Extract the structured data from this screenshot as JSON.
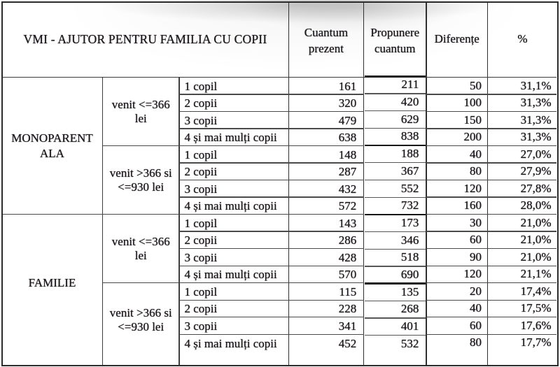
{
  "title": "VMI - AJUTOR PENTRU FAMILIA CU COPII",
  "columns": {
    "cuantum_prezent": "Cuantum prezent",
    "propunere_cuantum": "Propunere cuantum",
    "diferente": "Diferențe",
    "procent": "%"
  },
  "groups": [
    {
      "label": "MONOPARENTALA",
      "income_bands": [
        {
          "label": "venit <=366 lei",
          "rows": [
            {
              "label": "1 copil",
              "cuantum_prezent": "161",
              "propunere_cuantum": "211",
              "diferenta": "50",
              "procent": "31,1%"
            },
            {
              "label": "2 copii",
              "cuantum_prezent": "320",
              "propunere_cuantum": "420",
              "diferenta": "100",
              "procent": "31,3%"
            },
            {
              "label": "3 copii",
              "cuantum_prezent": "479",
              "propunere_cuantum": "629",
              "diferenta": "150",
              "procent": "31,3%"
            },
            {
              "label": "4 și mai mulți copii",
              "cuantum_prezent": "638",
              "propunere_cuantum": "838",
              "diferenta": "200",
              "procent": "31,3%"
            }
          ]
        },
        {
          "label": "venit >366 si <=930 lei",
          "rows": [
            {
              "label": "1 copil",
              "cuantum_prezent": "148",
              "propunere_cuantum": "188",
              "diferenta": "40",
              "procent": "27,0%"
            },
            {
              "label": "2 copii",
              "cuantum_prezent": "287",
              "propunere_cuantum": "367",
              "diferenta": "80",
              "procent": "27,9%"
            },
            {
              "label": "3 copii",
              "cuantum_prezent": "432",
              "propunere_cuantum": "552",
              "diferenta": "120",
              "procent": "27,8%"
            },
            {
              "label": "4 și mai mulți copii",
              "cuantum_prezent": "572",
              "propunere_cuantum": "732",
              "diferenta": "160",
              "procent": "28,0%"
            }
          ]
        }
      ]
    },
    {
      "label": "FAMILIE",
      "income_bands": [
        {
          "label": "venit <=366 lei",
          "rows": [
            {
              "label": "1 copil",
              "cuantum_prezent": "143",
              "propunere_cuantum": "173",
              "diferenta": "30",
              "procent": "21,0%"
            },
            {
              "label": "2 copii",
              "cuantum_prezent": "286",
              "propunere_cuantum": "346",
              "diferenta": "60",
              "procent": "21,0%"
            },
            {
              "label": "3 copii",
              "cuantum_prezent": "428",
              "propunere_cuantum": "518",
              "diferenta": "90",
              "procent": "21,0%"
            },
            {
              "label": "4 și mai mulți copii",
              "cuantum_prezent": "570",
              "propunere_cuantum": "690",
              "diferenta": "120",
              "procent": "21,1%"
            }
          ]
        },
        {
          "label": "venit >366 si <=930 lei",
          "rows": [
            {
              "label": "1 copil",
              "cuantum_prezent": "115",
              "propunere_cuantum": "135",
              "diferenta": "20",
              "procent": "17,4%"
            },
            {
              "label": "2 copii",
              "cuantum_prezent": "228",
              "propunere_cuantum": "268",
              "diferenta": "40",
              "procent": "17,5%"
            },
            {
              "label": "3 copii",
              "cuantum_prezent": "341",
              "propunere_cuantum": "401",
              "diferenta": "60",
              "procent": "17,6%"
            },
            {
              "label": "4 și mai mulți copii",
              "cuantum_prezent": "452",
              "propunere_cuantum": "532",
              "diferenta": "80",
              "procent": "17,7%"
            }
          ]
        }
      ]
    }
  ],
  "colors": {
    "text": "#1d1d20",
    "grid_line": "#4a4a4a",
    "outer_border": "#2b2b2b",
    "overlay_thick_line": "#161616",
    "background": "#ffffff"
  }
}
